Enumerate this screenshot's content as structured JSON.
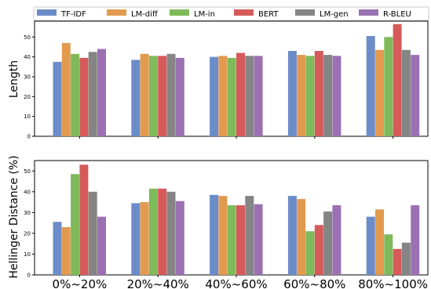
{
  "colors": [
    "#6b8cc8",
    "#e29a4f",
    "#7fba5a",
    "#d65a5a",
    "#858585",
    "#9b71b3"
  ],
  "chart_data": [
    {
      "type": "bar",
      "ylabel": "Length",
      "ylim": [
        0,
        58
      ],
      "yticks": [
        "0",
        "10",
        "20",
        "30",
        "40",
        "50"
      ],
      "categories": [
        "0%~20%",
        "20%~40%",
        "40%~60%",
        "60%~80%",
        "80%~100%"
      ],
      "series": [
        {
          "name": "TF-IDF",
          "values": [
            37.5,
            38.5,
            40,
            43,
            50.5
          ]
        },
        {
          "name": "LM-diff",
          "values": [
            47,
            41.5,
            40.5,
            41,
            43.5
          ]
        },
        {
          "name": "LM-in",
          "values": [
            41.5,
            40.5,
            39.5,
            40.5,
            50
          ]
        },
        {
          "name": "BERT",
          "values": [
            39.5,
            40.5,
            42,
            43,
            56.5
          ]
        },
        {
          "name": "LM-gen",
          "values": [
            42.5,
            41.5,
            40.5,
            41,
            43.5
          ]
        },
        {
          "name": "R-BLEU",
          "values": [
            44,
            39.5,
            40.5,
            40.5,
            41
          ]
        }
      ],
      "legend": "top"
    },
    {
      "type": "bar",
      "ylabel": "Hellinger Distance (%)",
      "ylim": [
        0,
        55
      ],
      "yticks": [
        "0",
        "10",
        "20",
        "30",
        "40",
        "50"
      ],
      "categories": [
        "0%~20%",
        "20%~40%",
        "40%~60%",
        "60%~80%",
        "80%~100%"
      ],
      "series": [
        {
          "name": "TF-IDF",
          "values": [
            25.5,
            34.5,
            38.5,
            38,
            28
          ]
        },
        {
          "name": "LM-diff",
          "values": [
            23,
            35,
            38,
            36.5,
            31.5
          ]
        },
        {
          "name": "LM-in",
          "values": [
            48.5,
            41.5,
            33.5,
            21,
            19.5
          ]
        },
        {
          "name": "BERT",
          "values": [
            53,
            41.5,
            33.5,
            24,
            12.5
          ]
        },
        {
          "name": "LM-gen",
          "values": [
            40,
            40,
            38,
            30.5,
            15.5
          ]
        },
        {
          "name": "R-BLEU",
          "values": [
            28,
            35.5,
            34,
            33.5,
            33.5
          ]
        }
      ]
    }
  ]
}
